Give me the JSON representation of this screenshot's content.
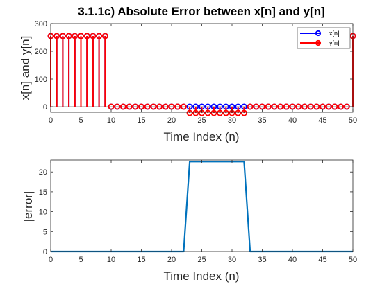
{
  "chart_data": [
    {
      "type": "stem",
      "title": "3.1.1c) Absolute Error between x[n] and y[n]",
      "xlabel": "Time Index (n)",
      "ylabel": "x[n] and y[n]",
      "xlim": [
        0,
        50
      ],
      "ylim": [
        -20,
        300
      ],
      "xticks": [
        "0",
        "5",
        "10",
        "15",
        "20",
        "25",
        "30",
        "35",
        "40",
        "45",
        "50"
      ],
      "yticks": [
        "0",
        "100",
        "200",
        "300"
      ],
      "legend_position": "top-right",
      "grid": false,
      "series": [
        {
          "name": "x[n]",
          "color": "#0000ff",
          "x": [
            0,
            1,
            2,
            3,
            4,
            5,
            6,
            7,
            8,
            9,
            10,
            11,
            12,
            13,
            14,
            15,
            16,
            17,
            18,
            19,
            20,
            21,
            22,
            23,
            24,
            25,
            26,
            27,
            28,
            29,
            30,
            31,
            32,
            33,
            34,
            35,
            36,
            37,
            38,
            39,
            40,
            41,
            42,
            43,
            44,
            45,
            46,
            47,
            48,
            49,
            50
          ],
          "values": [
            255,
            255,
            255,
            255,
            255,
            255,
            255,
            255,
            255,
            255,
            0,
            0,
            0,
            0,
            0,
            0,
            0,
            0,
            0,
            0,
            0,
            0,
            0,
            0,
            0,
            0,
            0,
            0,
            0,
            0,
            0,
            0,
            0,
            0,
            0,
            0,
            0,
            0,
            0,
            0,
            0,
            0,
            0,
            0,
            0,
            0,
            0,
            0,
            0,
            0,
            255
          ]
        },
        {
          "name": "y[n]",
          "color": "#ff0000",
          "x": [
            0,
            1,
            2,
            3,
            4,
            5,
            6,
            7,
            8,
            9,
            10,
            11,
            12,
            13,
            14,
            15,
            16,
            17,
            18,
            19,
            20,
            21,
            22,
            23,
            24,
            25,
            26,
            27,
            28,
            29,
            30,
            31,
            32,
            33,
            34,
            35,
            36,
            37,
            38,
            39,
            40,
            41,
            42,
            43,
            44,
            45,
            46,
            47,
            48,
            49,
            50
          ],
          "values": [
            255,
            255,
            255,
            255,
            255,
            255,
            255,
            255,
            255,
            255,
            0,
            0,
            0,
            0,
            0,
            0,
            0,
            0,
            0,
            0,
            0,
            0,
            0,
            -22.6,
            -22.6,
            -22.6,
            -22.6,
            -22.6,
            -22.6,
            -22.6,
            -22.6,
            -22.6,
            -22.6,
            0,
            0,
            0,
            0,
            0,
            0,
            0,
            0,
            0,
            0,
            0,
            0,
            0,
            0,
            0,
            0,
            0,
            255
          ]
        }
      ]
    },
    {
      "type": "line",
      "title": "",
      "xlabel": "Time Index (n)",
      "ylabel": "|error|",
      "xlim": [
        0,
        50
      ],
      "ylim": [
        0,
        23
      ],
      "xticks": [
        "0",
        "5",
        "10",
        "15",
        "20",
        "25",
        "30",
        "35",
        "40",
        "45",
        "50"
      ],
      "yticks": [
        "0",
        "5",
        "10",
        "15",
        "20"
      ],
      "grid": false,
      "series": [
        {
          "name": "",
          "color": "#0072bd",
          "x": [
            0,
            1,
            2,
            3,
            4,
            5,
            6,
            7,
            8,
            9,
            10,
            11,
            12,
            13,
            14,
            15,
            16,
            17,
            18,
            19,
            20,
            21,
            22,
            23,
            24,
            25,
            26,
            27,
            28,
            29,
            30,
            31,
            32,
            33,
            34,
            35,
            36,
            37,
            38,
            39,
            40,
            41,
            42,
            43,
            44,
            45,
            46,
            47,
            48,
            49,
            50
          ],
          "values": [
            0,
            0,
            0,
            0,
            0,
            0,
            0,
            0,
            0,
            0,
            0,
            0,
            0,
            0,
            0,
            0,
            0,
            0,
            0,
            0,
            0,
            0,
            0,
            22.6,
            22.6,
            22.6,
            22.6,
            22.6,
            22.6,
            22.6,
            22.6,
            22.6,
            22.6,
            0,
            0,
            0,
            0,
            0,
            0,
            0,
            0,
            0,
            0,
            0,
            0,
            0,
            0,
            0,
            0,
            0,
            0
          ]
        }
      ]
    }
  ]
}
